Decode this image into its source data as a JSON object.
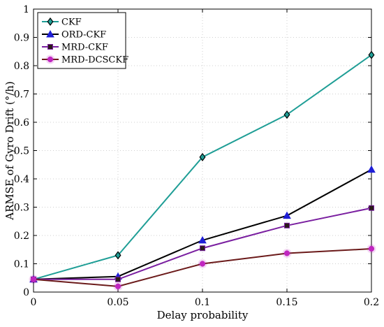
{
  "chart_data": {
    "type": "line",
    "title": "",
    "xlabel": "Delay probability",
    "ylabel": "ARMSE of Gyro Drift (°/h)",
    "x": [
      0,
      0.05,
      0.1,
      0.15,
      0.2
    ],
    "xlim": [
      0,
      0.2
    ],
    "ylim": [
      0,
      1
    ],
    "xticks": [
      "0",
      "0.05",
      "0.1",
      "0.15",
      "0.2"
    ],
    "yticks": [
      "0",
      "0.1",
      "0.2",
      "0.3",
      "0.4",
      "0.5",
      "0.6",
      "0.7",
      "0.8",
      "0.9",
      "1"
    ],
    "grid": true,
    "legend_position": "top-left",
    "series": [
      {
        "name": "CKF",
        "values": [
          0.045,
          0.13,
          0.477,
          0.627,
          0.838
        ],
        "color": "#1f9e96",
        "marker": "diamond"
      },
      {
        "name": "ORD-CKF",
        "values": [
          0.045,
          0.055,
          0.183,
          0.27,
          0.433
        ],
        "color": "#000000",
        "marker_color": "#1f1fd6",
        "marker": "triangle"
      },
      {
        "name": "MRD-CKF",
        "values": [
          0.045,
          0.045,
          0.155,
          0.235,
          0.297
        ],
        "color": "#7a1fa0",
        "marker": "square"
      },
      {
        "name": "MRD-DCSCKF",
        "values": [
          0.045,
          0.02,
          0.1,
          0.137,
          0.153
        ],
        "color": "#6b1a1a",
        "marker_color": "#c026c0",
        "marker": "circle"
      }
    ]
  }
}
